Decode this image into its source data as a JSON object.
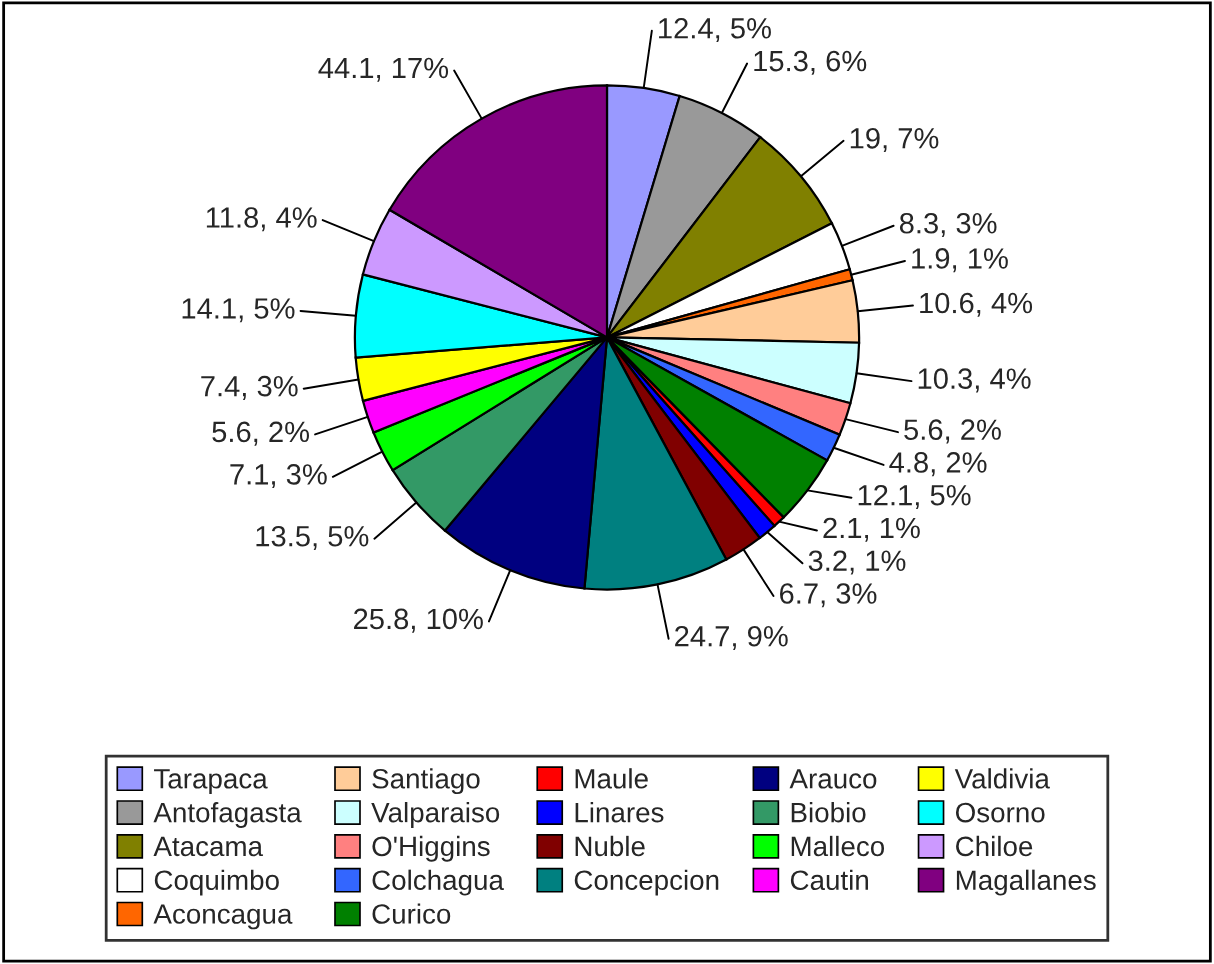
{
  "chart_data": {
    "type": "pie",
    "categories": [
      "Tarapaca",
      "Antofagasta",
      "Atacama",
      "Coquimbo",
      "Aconcagua",
      "Santiago",
      "Valparaiso",
      "O'Higgins",
      "Colchagua",
      "Curico",
      "Maule",
      "Linares",
      "Nuble",
      "Concepcion",
      "Arauco",
      "Biobio",
      "Malleco",
      "Cautin",
      "Valdivia",
      "Osorno",
      "Chiloe",
      "Magallanes"
    ],
    "values": [
      12.4,
      15.3,
      19,
      8.3,
      1.9,
      10.6,
      10.3,
      5.6,
      4.8,
      12.1,
      2.1,
      3.2,
      6.7,
      24.7,
      25.8,
      13.5,
      7.1,
      5.6,
      7.4,
      14.1,
      11.8,
      44.1
    ],
    "value_labels": [
      "12.4, 5%",
      "15.3, 6%",
      "19, 7%",
      "8.3, 3%",
      "1.9, 1%",
      "10.6, 4%",
      "10.3, 4%",
      "5.6, 2%",
      "4.8, 2%",
      "12.1, 5%",
      "2.1, 1%",
      "3.2, 1%",
      "6.7, 3%",
      "24.7, 9%",
      "25.8, 10%",
      "13.5, 5%",
      "7.1, 3%",
      "5.6, 2%",
      "7.4, 3%",
      "14.1, 5%",
      "11.8, 4%",
      "44.1, 17%"
    ],
    "colors": [
      "#9999ff",
      "#999999",
      "#808000",
      "#ffffff",
      "#ff6600",
      "#ffcc99",
      "#ccffff",
      "#ff8080",
      "#3366ff",
      "#008000",
      "#ff0000",
      "#0000ff",
      "#800000",
      "#008080",
      "#000080",
      "#339966",
      "#00ff00",
      "#ff00ff",
      "#ffff00",
      "#00ffff",
      "#cc99ff",
      "#800080"
    ],
    "legend": "bottom"
  }
}
